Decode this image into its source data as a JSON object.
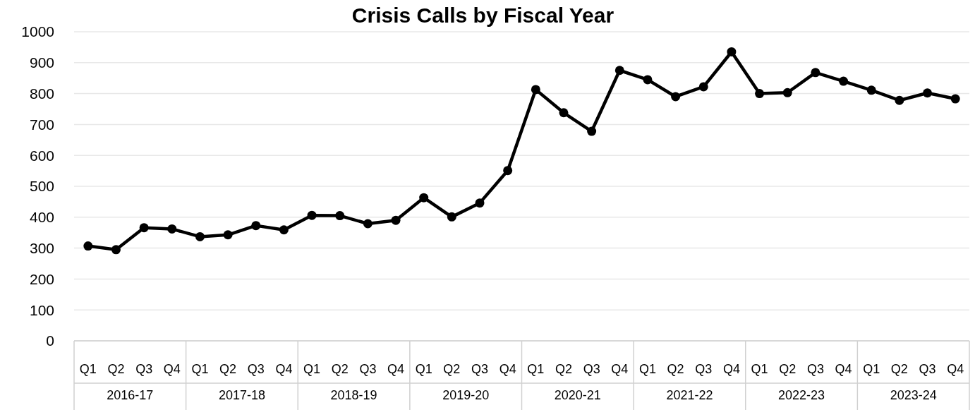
{
  "chart_data": {
    "type": "line",
    "title": "Crisis Calls by Fiscal Year",
    "categories": [
      "Q1",
      "Q2",
      "Q3",
      "Q4",
      "Q1",
      "Q2",
      "Q3",
      "Q4",
      "Q1",
      "Q2",
      "Q3",
      "Q4",
      "Q1",
      "Q2",
      "Q3",
      "Q4",
      "Q1",
      "Q2",
      "Q3",
      "Q4",
      "Q1",
      "Q2",
      "Q3",
      "Q4",
      "Q1",
      "Q2",
      "Q3",
      "Q4",
      "Q1",
      "Q2",
      "Q3",
      "Q4"
    ],
    "series": [
      {
        "color": "#000000",
        "values": [
          307,
          295,
          366,
          362,
          337,
          343,
          373,
          359,
          406,
          405,
          379,
          390,
          463,
          401,
          446,
          551,
          813,
          738,
          678,
          875,
          845,
          790,
          822,
          935,
          800,
          803,
          868,
          840,
          811,
          778,
          802,
          783
        ]
      }
    ],
    "annotations": [
      "2016-17",
      "2017-18",
      "2018-19",
      "2019-20",
      "2020-21",
      "2021-22",
      "2022-23",
      "2023-24"
    ],
    "ylim": [
      0,
      1000
    ],
    "yticks": [
      0,
      100,
      200,
      300,
      400,
      500,
      600,
      700,
      800,
      900,
      1000
    ],
    "grid": "y",
    "marker": "circle",
    "line_style": "solid"
  }
}
